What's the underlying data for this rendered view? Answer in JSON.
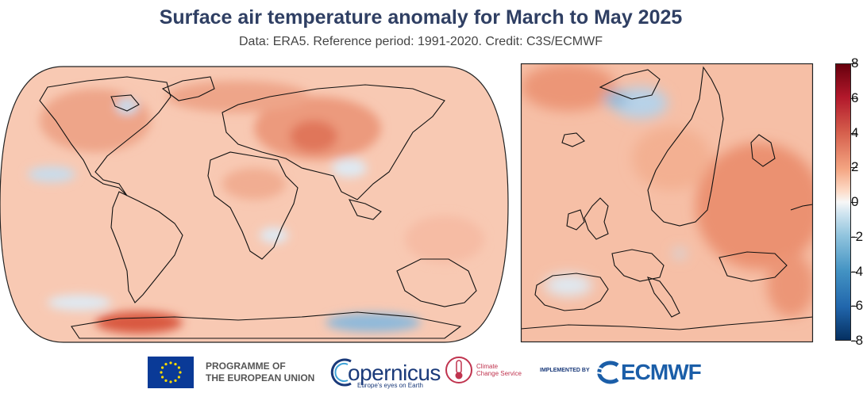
{
  "header": {
    "title": "Surface air temperature anomaly for March to May 2025",
    "subtitle": "Data: ERA5.  Reference period: 1991-2020.  Credit: C3S/ECMWF"
  },
  "colors": {
    "strong_warm": "#b2182b",
    "warm": "#e8866b",
    "light_warm": "#f8c4ad",
    "neutral": "#f7f7f7",
    "cool": "#92c5de",
    "strong_cool": "#2166ac",
    "coastline": "#111111"
  },
  "colorbar": {
    "labels": [
      "8",
      "6",
      "4",
      "2",
      "0",
      "-2",
      "-4",
      "-6",
      "-8"
    ]
  },
  "logos": {
    "eu_text_line1": "PROGRAMME OF",
    "eu_text_line2": "THE EUROPEAN UNION",
    "copernicus_word": "opernicus",
    "copernicus_tagline": "Europe's eyes on Earth",
    "c3s_line1": "Climate",
    "c3s_line2": "Change Service",
    "implemented_by": "IMPLEMENTED BY",
    "ecmwf_word": "ECMWF"
  }
}
